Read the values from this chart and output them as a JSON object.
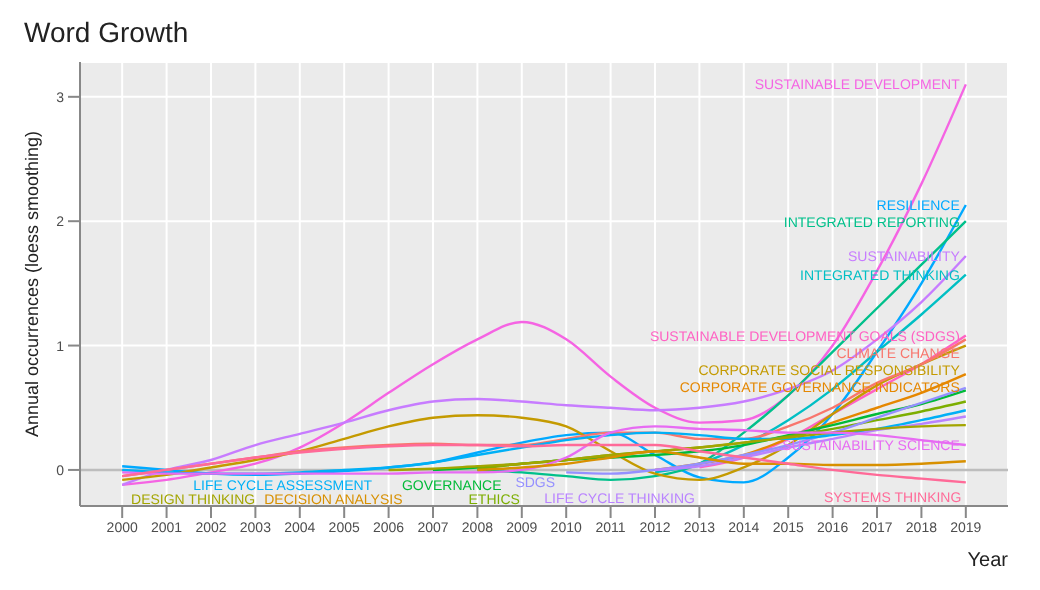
{
  "chart_data": {
    "type": "line",
    "title": "Word Growth",
    "xlabel": "Year",
    "ylabel": "Annual occurrences (loess smoothing)",
    "x": [
      2000,
      2001,
      2002,
      2003,
      2004,
      2005,
      2006,
      2007,
      2008,
      2009,
      2010,
      2011,
      2012,
      2013,
      2014,
      2015,
      2016,
      2017,
      2018,
      2019
    ],
    "xlim": [
      1999.05,
      2019.95
    ],
    "xticks": [
      2000,
      2001,
      2002,
      2003,
      2004,
      2005,
      2006,
      2007,
      2008,
      2009,
      2010,
      2011,
      2012,
      2013,
      2014,
      2015,
      2016,
      2017,
      2018,
      2019
    ],
    "ylim": [
      -0.29,
      3.28
    ],
    "yticks": [
      0,
      1,
      2,
      3
    ],
    "grid": true,
    "marker": "none",
    "line_style": "solid",
    "ref_lines": [
      {
        "axis": "y",
        "value": 0,
        "color": "#bdbdbd"
      }
    ],
    "series": [
      {
        "name": "SUSTAINABLE DEVELOPMENT",
        "color": "#f564e3",
        "values": [
          -0.12,
          -0.08,
          -0.02,
          0.05,
          0.18,
          0.38,
          0.62,
          0.85,
          1.05,
          1.19,
          1.05,
          0.75,
          0.5,
          0.38,
          0.4,
          0.6,
          1.0,
          1.6,
          2.3,
          3.1
        ]
      },
      {
        "name": "RESILIENCE",
        "color": "#00a9ff",
        "values": [
          0.03,
          0,
          -0.03,
          -0.04,
          -0.03,
          -0.01,
          0.02,
          0.06,
          0.14,
          0.22,
          0.28,
          0.3,
          0.12,
          -0.06,
          -0.1,
          0.1,
          0.45,
          0.95,
          1.5,
          2.13
        ]
      },
      {
        "name": "INTEGRATED REPORTING",
        "color": "#00c08b",
        "values": [
          null,
          null,
          null,
          null,
          null,
          null,
          null,
          null,
          0,
          -0.02,
          -0.05,
          -0.08,
          -0.05,
          0.05,
          0.3,
          0.6,
          0.95,
          1.3,
          1.65,
          2.0
        ]
      },
      {
        "name": "SUSTAINABILITY",
        "color": "#c77cff",
        "values": [
          -0.12,
          0,
          0.08,
          0.2,
          0.29,
          0.38,
          0.48,
          0.55,
          0.57,
          0.55,
          0.52,
          0.5,
          0.48,
          0.5,
          0.55,
          0.65,
          0.8,
          1.05,
          1.35,
          1.72
        ]
      },
      {
        "name": "INTEGRATED THINKING",
        "color": "#00bfc4",
        "values": [
          null,
          null,
          null,
          null,
          null,
          null,
          null,
          null,
          null,
          null,
          null,
          null,
          -0.02,
          0.05,
          0.2,
          0.4,
          0.65,
          0.95,
          1.25,
          1.57
        ]
      },
      {
        "name": "SUSTAINABLE DEVELOPMENT GOALS (SDGS)",
        "color": "#ff61c3",
        "values": [
          null,
          null,
          null,
          null,
          null,
          null,
          null,
          null,
          null,
          null,
          null,
          null,
          null,
          0.02,
          0.1,
          0.25,
          0.45,
          0.65,
          0.85,
          1.08
        ]
      },
      {
        "name": "CORPORATE SOCIAL RESPONSIBILITY",
        "color": "#c49a00",
        "values": [
          -0.08,
          -0.04,
          0.02,
          0.08,
          0.15,
          0.25,
          0.35,
          0.42,
          0.44,
          0.42,
          0.35,
          0.15,
          -0.03,
          -0.08,
          0.02,
          0.2,
          0.45,
          0.68,
          0.85,
          1.0
        ]
      },
      {
        "name": "CLIMATE CHANGE",
        "color": "#f8766d",
        "values": [
          -0.05,
          0,
          0.05,
          0.1,
          0.15,
          0.18,
          0.2,
          0.21,
          0.2,
          0.2,
          0.25,
          0.3,
          0.3,
          0.25,
          0.25,
          0.35,
          0.5,
          0.7,
          0.85,
          1.05
        ]
      },
      {
        "name": "CORPORATE GOVERNANCE INDICATORS",
        "color": "#e58700",
        "values": [
          null,
          null,
          null,
          null,
          null,
          null,
          null,
          null,
          null,
          null,
          null,
          null,
          0,
          0.05,
          0.12,
          0.25,
          0.38,
          0.5,
          0.62,
          0.77
        ]
      },
      {
        "name": "GOVERNANCE",
        "color": "#00ba38",
        "values": [
          null,
          null,
          null,
          null,
          null,
          null,
          null,
          0,
          0.02,
          0.05,
          0.08,
          0.1,
          0.12,
          0.15,
          0.2,
          0.28,
          0.36,
          0.45,
          0.53,
          0.64
        ]
      },
      {
        "name": "ETHICS",
        "color": "#7cae00",
        "values": [
          null,
          null,
          null,
          null,
          null,
          null,
          null,
          null,
          0.01,
          0.05,
          0.08,
          0.12,
          0.15,
          0.18,
          0.22,
          0.27,
          0.33,
          0.4,
          0.47,
          0.55
        ]
      },
      {
        "name": "SDGS",
        "color": "#9590ff",
        "values": [
          null,
          null,
          null,
          null,
          null,
          null,
          null,
          null,
          null,
          null,
          -0.02,
          -0.03,
          0,
          0.05,
          0.12,
          0.2,
          0.3,
          0.42,
          0.54,
          0.66
        ]
      },
      {
        "name": "LIFE CYCLE ASSESSMENT",
        "color": "#00b0f6",
        "values": [
          0,
          -0.02,
          -0.03,
          -0.03,
          -0.02,
          0,
          0.02,
          0.06,
          0.12,
          0.18,
          0.24,
          0.28,
          0.3,
          0.28,
          0.25,
          0.25,
          0.28,
          0.33,
          0.4,
          0.48
        ]
      },
      {
        "name": "LIFE CYCLE THINKING",
        "color": "#b983ff",
        "values": [
          null,
          null,
          null,
          null,
          null,
          null,
          null,
          null,
          null,
          null,
          null,
          null,
          0,
          0.03,
          0.1,
          0.18,
          0.25,
          0.32,
          0.37,
          0.43
        ]
      },
      {
        "name": "DESIGN THINKING",
        "color": "#a3a500",
        "values": [
          null,
          null,
          null,
          null,
          null,
          null,
          0,
          0.01,
          0.03,
          0.05,
          0.08,
          0.12,
          0.15,
          0.18,
          0.22,
          0.26,
          0.3,
          0.33,
          0.35,
          0.36
        ]
      },
      {
        "name": "SUSTAINABILITY SCIENCE",
        "color": "#e76bf3",
        "values": [
          -0.02,
          -0.03,
          -0.03,
          -0.03,
          -0.03,
          -0.03,
          -0.03,
          -0.02,
          -0.02,
          0,
          0.1,
          0.3,
          0.35,
          0.33,
          0.32,
          0.3,
          0.3,
          0.28,
          0.24,
          0.2
        ]
      },
      {
        "name": "DECISION ANALYSIS",
        "color": "#d89000",
        "values": [
          null,
          null,
          null,
          null,
          null,
          null,
          null,
          null,
          0,
          0.02,
          0.05,
          0.1,
          0.15,
          0.1,
          0.05,
          0.05,
          0.04,
          0.04,
          0.05,
          0.07
        ]
      },
      {
        "name": "SYSTEMS THINKING",
        "color": "#ff6a98",
        "values": [
          -0.05,
          0,
          0.05,
          0.1,
          0.14,
          0.17,
          0.19,
          0.2,
          0.2,
          0.19,
          0.2,
          0.2,
          0.2,
          0.15,
          0.1,
          0.05,
          0,
          -0.04,
          -0.07,
          -0.1
        ]
      }
    ]
  }
}
